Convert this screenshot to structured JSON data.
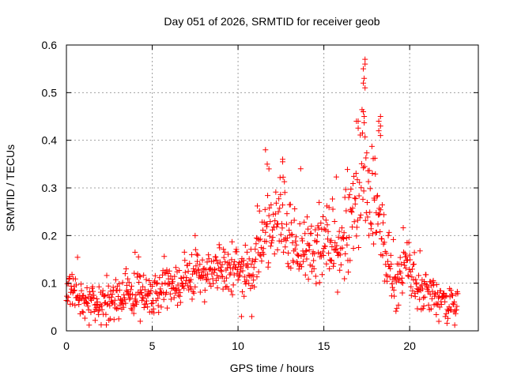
{
  "chart_data": {
    "type": "scatter",
    "title": "Day 051 of 2026, SRMTID for receiver geob",
    "xlabel": "GPS time / hours",
    "ylabel": "SRMTID / TECUs",
    "xlim": [
      0,
      24
    ],
    "ylim": [
      0,
      0.6
    ],
    "x_ticks": [
      "0",
      "5",
      "10",
      "15",
      "20"
    ],
    "y_ticks": [
      "0",
      "0.1",
      "0.2",
      "0.3",
      "0.4",
      "0.5",
      "0.6"
    ],
    "grid": true,
    "marker": "+",
    "series_color": "#ff0000",
    "x_start": 0,
    "x_end": 22.8,
    "x_step": 0.025,
    "baseline": [
      [
        0.0,
        0.08
      ],
      [
        0.3,
        0.09
      ],
      [
        1.0,
        0.06
      ],
      [
        2.0,
        0.06
      ],
      [
        3.0,
        0.065
      ],
      [
        3.8,
        0.085
      ],
      [
        4.5,
        0.07
      ],
      [
        5.0,
        0.07
      ],
      [
        6.0,
        0.09
      ],
      [
        7.0,
        0.1
      ],
      [
        7.5,
        0.11
      ],
      [
        8.0,
        0.12
      ],
      [
        9.0,
        0.13
      ],
      [
        10.0,
        0.12
      ],
      [
        10.8,
        0.12
      ],
      [
        11.3,
        0.17
      ],
      [
        11.7,
        0.22
      ],
      [
        12.2,
        0.24
      ],
      [
        12.7,
        0.21
      ],
      [
        13.2,
        0.18
      ],
      [
        13.7,
        0.15
      ],
      [
        14.3,
        0.16
      ],
      [
        14.8,
        0.19
      ],
      [
        15.3,
        0.2
      ],
      [
        15.8,
        0.17
      ],
      [
        16.2,
        0.18
      ],
      [
        16.6,
        0.23
      ],
      [
        17.0,
        0.3
      ],
      [
        17.4,
        0.33
      ],
      [
        17.8,
        0.27
      ],
      [
        18.2,
        0.24
      ],
      [
        18.6,
        0.14
      ],
      [
        19.2,
        0.1
      ],
      [
        19.6,
        0.13
      ],
      [
        20.0,
        0.14
      ],
      [
        20.3,
        0.09
      ],
      [
        21.0,
        0.08
      ],
      [
        21.5,
        0.07
      ],
      [
        22.0,
        0.06
      ],
      [
        22.5,
        0.045
      ],
      [
        22.8,
        0.05
      ]
    ],
    "spread": [
      [
        0.0,
        0.035
      ],
      [
        10.5,
        0.045
      ],
      [
        11.5,
        0.07
      ],
      [
        13.0,
        0.075
      ],
      [
        15.0,
        0.06
      ],
      [
        16.5,
        0.08
      ],
      [
        17.3,
        0.11
      ],
      [
        18.0,
        0.1
      ],
      [
        19.0,
        0.05
      ],
      [
        20.5,
        0.04
      ],
      [
        22.8,
        0.03
      ]
    ],
    "highlights": [
      [
        17.4,
        0.57
      ],
      [
        17.4,
        0.56
      ],
      [
        17.3,
        0.55
      ],
      [
        17.35,
        0.53
      ],
      [
        17.3,
        0.52
      ],
      [
        17.4,
        0.51
      ],
      [
        17.3,
        0.46
      ],
      [
        17.35,
        0.45
      ],
      [
        16.9,
        0.44
      ],
      [
        17.0,
        0.44
      ],
      [
        18.3,
        0.45
      ],
      [
        18.2,
        0.44
      ],
      [
        18.3,
        0.43
      ],
      [
        18.2,
        0.42
      ],
      [
        18.3,
        0.41
      ],
      [
        11.6,
        0.38
      ],
      [
        12.6,
        0.36
      ],
      [
        12.6,
        0.355
      ],
      [
        11.7,
        0.35
      ],
      [
        11.8,
        0.34
      ],
      [
        4.0,
        0.165
      ],
      [
        7.5,
        0.2
      ],
      [
        10.2,
        0.03
      ],
      [
        10.8,
        0.03
      ],
      [
        4.3,
        0.02
      ]
    ]
  }
}
